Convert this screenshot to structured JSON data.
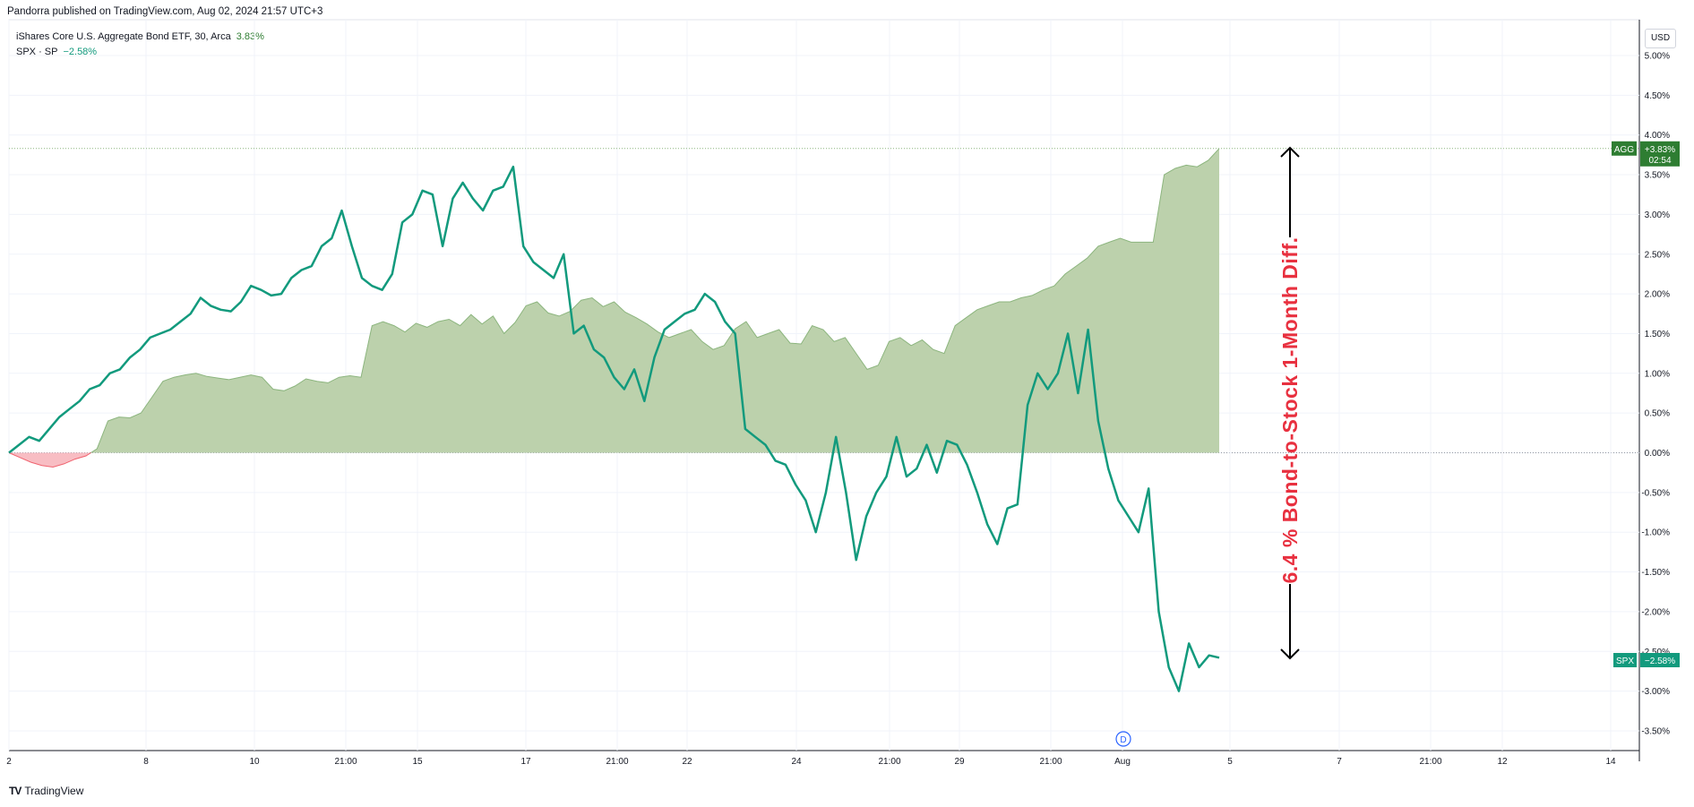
{
  "header": {
    "published_text": "Pandorra published on TradingView.com, Aug 02, 2024 21:57 UTC+3"
  },
  "legend": {
    "agg": {
      "label": "iShares Core U.S. Aggregate Bond ETF, 30, Arca",
      "value": "3.83%"
    },
    "spx": {
      "label": "SPX · SP",
      "value": "−2.58%"
    }
  },
  "currency_button": "USD",
  "footer": {
    "brand": "TradingView",
    "logo": "TV"
  },
  "annotation": {
    "text": "6.4 % Bond-to-Stock 1-Month Diff."
  },
  "price_tags": {
    "agg": {
      "name": "AGG",
      "value": "+3.83%",
      "time": "02:54"
    },
    "spx": {
      "name": "SPX",
      "value": "−2.58%"
    }
  },
  "dividend_marker": "D",
  "colors": {
    "agg_line": "#8cb57e",
    "agg_fill": "#b8cfa8",
    "agg_neg_fill": "#f7b6bd",
    "spx_line": "#129a7d",
    "annotation": "#e8303f",
    "agg_tag": "#2e7d32",
    "spx_tag": "#129a7d"
  },
  "chart_data": {
    "type": "area",
    "y_unit": "%",
    "ylim": [
      -3.7,
      5.0
    ],
    "y_ticks": [
      "5.00%",
      "4.50%",
      "4.00%",
      "3.50%",
      "3.00%",
      "2.50%",
      "2.00%",
      "1.50%",
      "1.00%",
      "0.50%",
      "0.00%",
      "-0.50%",
      "-1.00%",
      "-1.50%",
      "-2.00%",
      "-2.50%",
      "-3.00%",
      "-3.50%"
    ],
    "x_ticks": [
      "2",
      "8",
      "10",
      "21:00",
      "15",
      "17",
      "21:00",
      "22",
      "24",
      "21:00",
      "29",
      "21:00",
      "Aug",
      "5",
      "7",
      "21:00",
      "12",
      "14"
    ],
    "grid": true,
    "series": [
      {
        "name": "AGG",
        "type": "area",
        "values": [
          0,
          -0.06,
          -0.12,
          -0.16,
          -0.18,
          -0.14,
          -0.08,
          -0.04,
          0.05,
          0.4,
          0.45,
          0.44,
          0.5,
          0.7,
          0.9,
          0.95,
          0.98,
          1.0,
          0.96,
          0.94,
          0.92,
          0.95,
          0.98,
          0.95,
          0.8,
          0.78,
          0.84,
          0.93,
          0.9,
          0.88,
          0.95,
          0.97,
          0.95,
          1.6,
          1.65,
          1.6,
          1.52,
          1.63,
          1.58,
          1.65,
          1.68,
          1.6,
          1.74,
          1.62,
          1.72,
          1.5,
          1.64,
          1.85,
          1.9,
          1.76,
          1.72,
          1.78,
          1.92,
          1.95,
          1.84,
          1.9,
          1.77,
          1.7,
          1.62,
          1.52,
          1.45,
          1.5,
          1.55,
          1.4,
          1.3,
          1.35,
          1.56,
          1.65,
          1.45,
          1.5,
          1.55,
          1.38,
          1.37,
          1.6,
          1.55,
          1.4,
          1.45,
          1.25,
          1.05,
          1.1,
          1.4,
          1.45,
          1.35,
          1.42,
          1.3,
          1.25,
          1.6,
          1.7,
          1.8,
          1.85,
          1.9,
          1.9,
          1.95,
          1.98,
          2.05,
          2.1,
          2.25,
          2.35,
          2.45,
          2.6,
          2.65,
          2.7,
          2.65,
          2.65,
          2.65,
          3.5,
          3.58,
          3.62,
          3.6,
          3.68,
          3.83
        ]
      },
      {
        "name": "SPX",
        "type": "line",
        "values": [
          0,
          0.1,
          0.2,
          0.15,
          0.3,
          0.45,
          0.55,
          0.65,
          0.8,
          0.85,
          1.0,
          1.05,
          1.2,
          1.3,
          1.45,
          1.5,
          1.55,
          1.65,
          1.75,
          1.95,
          1.85,
          1.8,
          1.78,
          1.9,
          2.1,
          2.05,
          1.98,
          2.0,
          2.2,
          2.3,
          2.35,
          2.6,
          2.7,
          3.05,
          2.6,
          2.2,
          2.1,
          2.05,
          2.25,
          2.9,
          3.0,
          3.3,
          3.25,
          2.6,
          3.2,
          3.4,
          3.2,
          3.05,
          3.3,
          3.35,
          3.6,
          2.6,
          2.4,
          2.3,
          2.2,
          2.5,
          1.5,
          1.6,
          1.3,
          1.2,
          0.95,
          0.8,
          1.05,
          0.65,
          1.2,
          1.55,
          1.65,
          1.75,
          1.8,
          2.0,
          1.9,
          1.65,
          1.5,
          0.3,
          0.2,
          0.1,
          -0.1,
          -0.15,
          -0.4,
          -0.6,
          -1.0,
          -0.5,
          0.2,
          -0.5,
          -1.35,
          -0.8,
          -0.5,
          -0.3,
          0.2,
          -0.3,
          -0.2,
          0.1,
          -0.25,
          0.15,
          0.1,
          -0.15,
          -0.5,
          -0.9,
          -1.15,
          -0.7,
          -0.65,
          0.6,
          1.0,
          0.8,
          1.0,
          1.5,
          0.75,
          1.55,
          0.4,
          -0.2,
          -0.6,
          -0.8,
          -1.0,
          -0.45,
          -2.0,
          -2.7,
          -3.0,
          -2.4,
          -2.7,
          -2.55,
          -2.58
        ]
      }
    ]
  }
}
